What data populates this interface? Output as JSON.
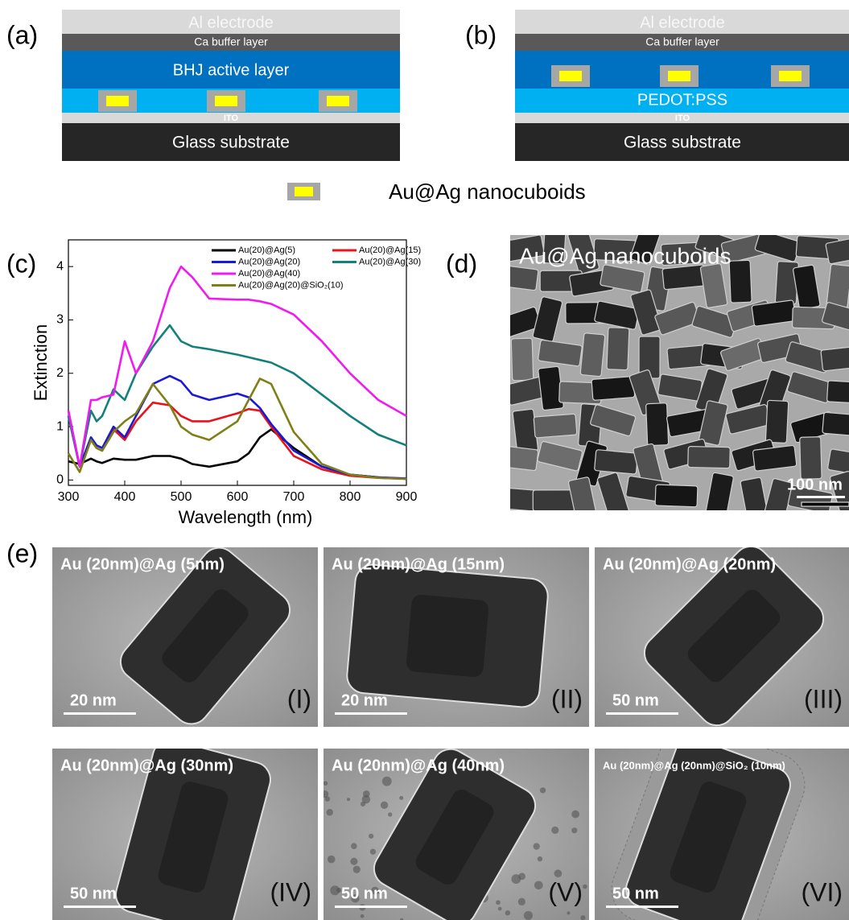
{
  "panels": [
    {
      "label": "(a)",
      "layers": {
        "top": "Al electrode",
        "buffer": "Ca buffer layer",
        "active": "BHJ active layer",
        "ito": "ITO",
        "substrate": "Glass substrate"
      }
    },
    {
      "label": "(b)",
      "layers": {
        "top": "Al electrode",
        "buffer": "Ca buffer layer",
        "pedot": "PEDOT:PSS",
        "ito": "ITO",
        "substrate": "Glass substrate"
      }
    }
  ],
  "legend": "Au@Ag nanocuboids",
  "chart_data": {
    "type": "line",
    "label": "(c)",
    "x_label": "Wavelength (nm)",
    "y_label": "Extinction",
    "x": [
      300,
      320,
      340,
      350,
      360,
      380,
      400,
      420,
      450,
      480,
      500,
      520,
      550,
      600,
      620,
      640,
      660,
      700,
      750,
      800,
      850,
      900
    ],
    "series": [
      {
        "name": "Au(20)@Ag(5)",
        "color": "#000000",
        "values": [
          0.35,
          0.3,
          0.4,
          0.35,
          0.32,
          0.4,
          0.38,
          0.38,
          0.45,
          0.45,
          0.4,
          0.3,
          0.25,
          0.35,
          0.5,
          0.8,
          0.95,
          0.6,
          0.25,
          0.1,
          0.05,
          0.02
        ]
      },
      {
        "name": "Au(20)@Ag(15)",
        "color": "#e8131b",
        "values": [
          1.3,
          0.25,
          0.75,
          0.6,
          0.55,
          0.95,
          0.75,
          1.1,
          1.45,
          1.4,
          1.2,
          1.1,
          1.1,
          1.25,
          1.33,
          1.3,
          1.0,
          0.45,
          0.2,
          0.08,
          0.04,
          0.02
        ]
      },
      {
        "name": "Au(20)@Ag(20)",
        "color": "#1a1ad6",
        "values": [
          1.2,
          0.25,
          0.8,
          0.65,
          0.6,
          1.0,
          0.8,
          1.2,
          1.8,
          1.95,
          1.85,
          1.6,
          1.5,
          1.62,
          1.55,
          1.35,
          1.05,
          0.55,
          0.25,
          0.1,
          0.05,
          0.03
        ]
      },
      {
        "name": "Au(20)@Ag(30)",
        "color": "#13807c",
        "values": [
          1.2,
          0.25,
          1.3,
          1.1,
          1.2,
          1.7,
          1.5,
          2.0,
          2.5,
          2.9,
          2.6,
          2.5,
          2.45,
          2.35,
          2.3,
          2.25,
          2.2,
          2.0,
          1.6,
          1.2,
          0.85,
          0.65
        ]
      },
      {
        "name": "Au(20)@Ag(40)",
        "color": "#f01af0",
        "values": [
          1.3,
          0.25,
          1.5,
          1.5,
          1.55,
          1.6,
          2.6,
          2.0,
          2.6,
          3.6,
          4.0,
          3.8,
          3.4,
          3.38,
          3.38,
          3.35,
          3.3,
          3.1,
          2.6,
          2.0,
          1.5,
          1.2
        ]
      },
      {
        "name": "Au(20)@Ag(20)@SiO₂(10)",
        "color": "#7f7f15",
        "values": [
          0.5,
          0.15,
          0.75,
          0.6,
          0.55,
          0.9,
          1.1,
          1.25,
          1.8,
          1.4,
          1.0,
          0.85,
          0.75,
          1.1,
          1.5,
          1.9,
          1.8,
          0.9,
          0.3,
          0.1,
          0.04,
          0.02
        ]
      }
    ],
    "xlim": [
      300,
      900
    ],
    "ylim": [
      -0.1,
      4.5
    ],
    "xticks": [
      300,
      400,
      500,
      600,
      700,
      800,
      900
    ],
    "yticks": [
      0,
      1,
      2,
      3,
      4
    ]
  },
  "micrograph": {
    "label": "(d)",
    "caption": "Au@Ag nanocuboids",
    "scale": "100 nm"
  },
  "tem": {
    "label": "(e)",
    "images": [
      {
        "caption": "Au (20nm)@Ag (5nm)",
        "scale": "20 nm",
        "numeral": "(I)"
      },
      {
        "caption": "Au (20nm)@Ag (15nm)",
        "scale": "20 nm",
        "numeral": "(II)"
      },
      {
        "caption": "Au (20nm)@Ag (20nm)",
        "scale": "50 nm",
        "numeral": "(III)"
      },
      {
        "caption": "Au (20nm)@Ag (30nm)",
        "scale": "50 nm",
        "numeral": "(IV)"
      },
      {
        "caption": "Au (20nm)@Ag (40nm)",
        "scale": "50 nm",
        "numeral": "(V)"
      },
      {
        "caption": "Au (20nm)@Ag (20nm)@SiO₂ (10nm)",
        "scale": "50 nm",
        "numeral": "(VI)"
      }
    ]
  }
}
